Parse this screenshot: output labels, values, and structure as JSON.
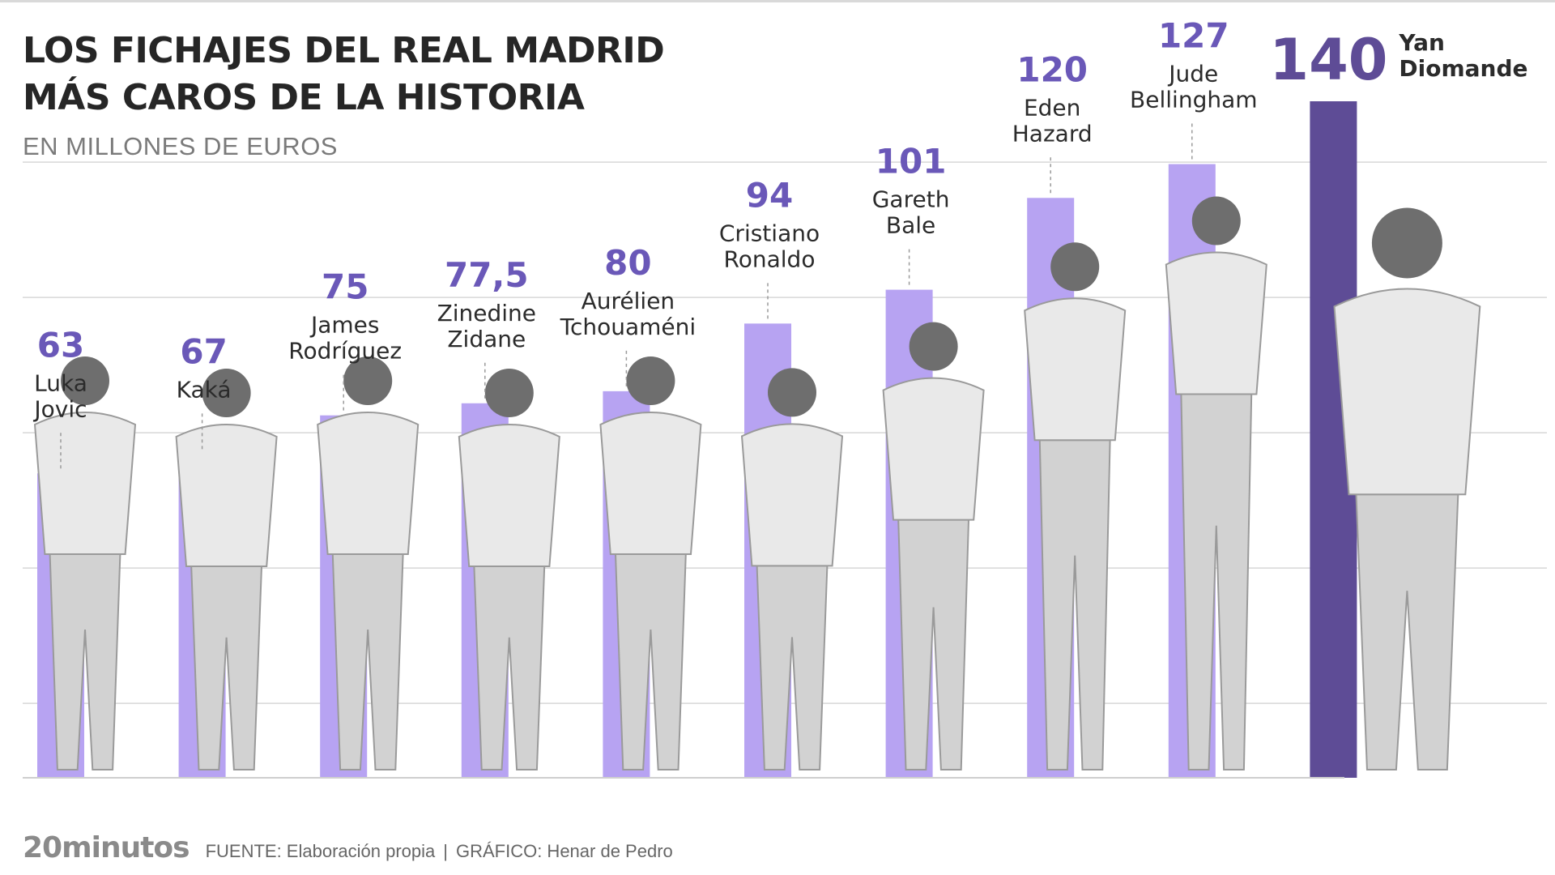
{
  "header": {
    "title_line1": "LOS FICHAJES DEL REAL MADRID",
    "title_line2": "MÁS CAROS DE LA HISTORIA",
    "subtitle": "EN MILLONES DE EUROS"
  },
  "footer": {
    "logo": "20minutos",
    "source": "FUENTE: Elaboración propia",
    "separator": "|",
    "credit": "GRÁFICO: Henar de Pedro"
  },
  "colors": {
    "bar": "#b7a3f2",
    "bar_highlight": "#5e4c96",
    "value_label": "#6a58b8",
    "name_label": "#2b2b2b",
    "grid": "#d7d7d7",
    "figure": "#8e8e8e"
  },
  "chart_data": {
    "type": "bar",
    "title": "LOS FICHAJES DEL REAL MADRID MÁS CAROS DE LA HISTORIA",
    "ylabel": "EN MILLONES DE EUROS",
    "ylim": [
      0,
      140
    ],
    "grid": "horizontal",
    "categories": [
      [
        "Luka",
        "Jovic"
      ],
      [
        "Kaká"
      ],
      [
        "James",
        "Rodríguez"
      ],
      [
        "Zinedine",
        "Zidane"
      ],
      [
        "Aurélien",
        "Tchouaméni"
      ],
      [
        "Cristiano",
        "Ronaldo"
      ],
      [
        "Gareth",
        "Bale"
      ],
      [
        "Eden",
        "Hazard"
      ],
      [
        "Jude",
        "Bellingham"
      ],
      [
        "Yan",
        "Diomande"
      ]
    ],
    "values": [
      63,
      67,
      75,
      77.5,
      80,
      94,
      101,
      120,
      127,
      140
    ],
    "value_labels": [
      "63",
      "67",
      "75",
      "77,5",
      "80",
      "94",
      "101",
      "120",
      "127",
      "140"
    ],
    "highlight_index": 9
  }
}
